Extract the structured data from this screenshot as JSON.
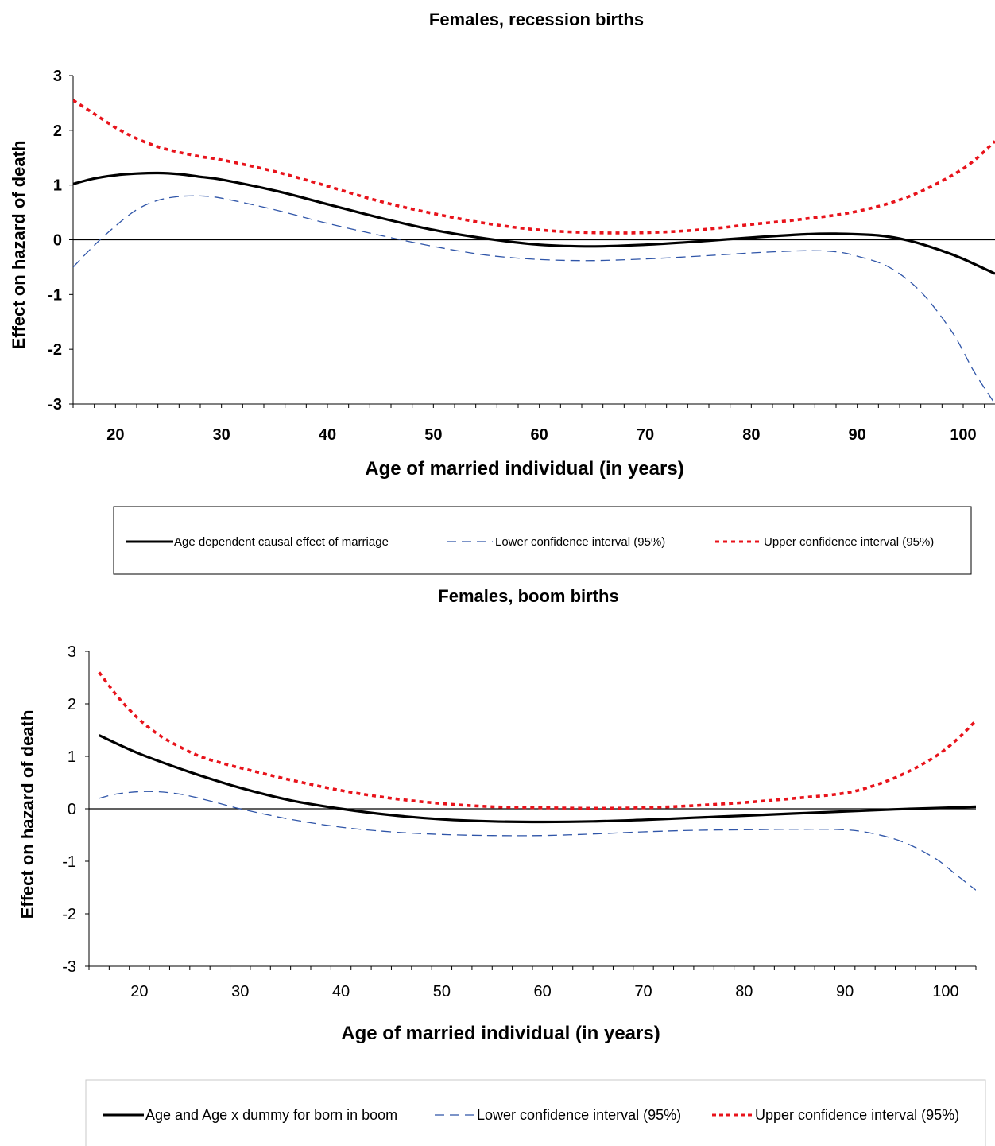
{
  "chart_data": [
    {
      "type": "line",
      "title": "Females, recession births",
      "xlabel": "Age of married individual (in years)",
      "ylabel": "Effect on hazard of death",
      "xlim": [
        16,
        103
      ],
      "ylim": [
        -3,
        3
      ],
      "x_ticks": [
        20,
        30,
        40,
        50,
        60,
        70,
        80,
        90,
        100
      ],
      "y_ticks": [
        3,
        2,
        1,
        0,
        -1,
        -2,
        -3
      ],
      "legend_position": "bottom",
      "series": [
        {
          "name": "Age dependent causal effect of marriage",
          "color": "#000000",
          "style": "solid",
          "x": [
            16,
            18,
            20,
            22,
            24,
            26,
            28,
            30,
            35,
            40,
            45,
            50,
            55,
            60,
            65,
            70,
            75,
            80,
            85,
            88,
            92,
            95,
            98,
            100,
            103
          ],
          "y": [
            1.02,
            1.12,
            1.18,
            1.21,
            1.22,
            1.2,
            1.15,
            1.1,
            0.9,
            0.65,
            0.4,
            0.18,
            0.02,
            -0.09,
            -0.12,
            -0.09,
            -0.03,
            0.04,
            0.1,
            0.11,
            0.08,
            -0.02,
            -0.2,
            -0.35,
            -0.62
          ]
        },
        {
          "name": "Lower confidence interval (95%)",
          "color": "#2f55a8",
          "style": "dashed",
          "x": [
            16,
            18,
            20,
            22,
            24,
            26,
            28,
            30,
            35,
            40,
            45,
            50,
            55,
            60,
            65,
            70,
            75,
            80,
            85,
            88,
            90,
            93,
            96,
            99,
            101,
            103
          ],
          "y": [
            -0.5,
            -0.1,
            0.25,
            0.55,
            0.72,
            0.79,
            0.8,
            0.76,
            0.55,
            0.3,
            0.08,
            -0.12,
            -0.28,
            -0.36,
            -0.38,
            -0.35,
            -0.3,
            -0.24,
            -0.2,
            -0.22,
            -0.3,
            -0.5,
            -0.95,
            -1.7,
            -2.4,
            -3.0
          ]
        },
        {
          "name": "Upper confidence interval (95%)",
          "color": "#e8131b",
          "style": "dotted",
          "x": [
            16,
            18,
            20,
            22,
            24,
            26,
            28,
            30,
            35,
            40,
            45,
            50,
            55,
            60,
            65,
            70,
            75,
            80,
            85,
            90,
            95,
            100,
            103
          ],
          "y": [
            2.55,
            2.3,
            2.05,
            1.85,
            1.7,
            1.6,
            1.52,
            1.46,
            1.25,
            0.98,
            0.7,
            0.48,
            0.3,
            0.18,
            0.13,
            0.13,
            0.18,
            0.28,
            0.38,
            0.52,
            0.8,
            1.3,
            1.8
          ]
        }
      ]
    },
    {
      "type": "line",
      "title": "Females, boom births",
      "xlabel": "Age of married individual (in years)",
      "ylabel": "Effect on hazard of death",
      "xlim": [
        15,
        103
      ],
      "ylim": [
        -3,
        3
      ],
      "x_ticks": [
        20,
        30,
        40,
        50,
        60,
        70,
        80,
        90,
        100
      ],
      "y_ticks": [
        3,
        2,
        1,
        0,
        -1,
        -2,
        -3
      ],
      "legend_position": "bottom",
      "series": [
        {
          "name": "Age and Age x dummy for born in boom",
          "color": "#000000",
          "style": "solid",
          "x": [
            16,
            20,
            25,
            30,
            35,
            40,
            45,
            50,
            55,
            60,
            65,
            70,
            75,
            80,
            85,
            90,
            95,
            100,
            103
          ],
          "y": [
            1.4,
            1.05,
            0.7,
            0.4,
            0.16,
            0.0,
            -0.12,
            -0.2,
            -0.24,
            -0.25,
            -0.24,
            -0.21,
            -0.17,
            -0.13,
            -0.09,
            -0.05,
            -0.01,
            0.02,
            0.04
          ]
        },
        {
          "name": "Lower confidence interval (95%)",
          "color": "#2f55a8",
          "style": "dashed",
          "x": [
            16,
            18,
            21,
            24,
            27,
            30,
            35,
            40,
            45,
            50,
            55,
            60,
            65,
            70,
            75,
            80,
            85,
            90,
            93,
            96,
            99,
            101,
            103
          ],
          "y": [
            0.2,
            0.29,
            0.33,
            0.28,
            0.15,
            0.0,
            -0.2,
            -0.35,
            -0.44,
            -0.49,
            -0.51,
            -0.51,
            -0.48,
            -0.44,
            -0.41,
            -0.4,
            -0.39,
            -0.4,
            -0.48,
            -0.65,
            -0.95,
            -1.25,
            -1.55
          ]
        },
        {
          "name": "Upper confidence interval (95%)",
          "color": "#e8131b",
          "style": "dotted",
          "x": [
            16,
            18,
            20,
            22,
            24,
            26,
            28,
            30,
            35,
            40,
            45,
            50,
            55,
            60,
            65,
            70,
            75,
            80,
            85,
            90,
            93,
            96,
            99,
            101,
            103
          ],
          "y": [
            2.6,
            2.1,
            1.7,
            1.4,
            1.18,
            1.0,
            0.88,
            0.78,
            0.55,
            0.35,
            0.2,
            0.1,
            0.04,
            0.02,
            0.01,
            0.02,
            0.06,
            0.12,
            0.2,
            0.3,
            0.45,
            0.68,
            1.0,
            1.3,
            1.68
          ]
        }
      ]
    }
  ]
}
